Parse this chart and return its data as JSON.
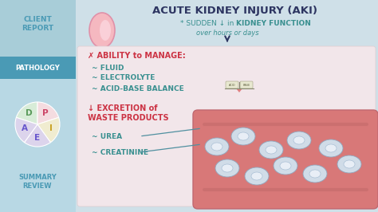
{
  "bg_color": "#cfe0e8",
  "sidebar_top_color": "#a8cdd8",
  "sidebar_mid_color": "#4a9ab5",
  "sidebar_bot_color": "#b8d8e4",
  "client_report_text": "CLIENT\nREPORT",
  "pathology_text": "PATHOLOGY",
  "summary_review_text": "SUMMARY\nREVIEW",
  "title": "ACUTE KIDNEY INJURY (AKI)",
  "subtitle1_plain": "* SUDDEN ↓ in ",
  "subtitle1_bold": "KIDNEY FUNCTION",
  "subtitle2": "over hours or days",
  "section1_header": "✗ ABILITY to MANAGE:",
  "section1_items": [
    "~ FLUID",
    "~ ELECTROLYTE",
    "~ ACID-BASE BALANCE"
  ],
  "section2_header_line1": "↓ EXCRETION of",
  "section2_header_line2": "WASTE PRODUCTS",
  "section2_items": [
    "~ UREA",
    "~ CREATININE"
  ],
  "title_color": "#2d3561",
  "red_color": "#cc3344",
  "teal_color": "#3a9090",
  "teal_bold_color": "#2a7070",
  "dark_navy": "#2d3561",
  "content_bg": "#f2e4e8",
  "vessel_color": "#d87878",
  "vessel_edge": "#c06060",
  "cell_outer": "#c8d8e8",
  "cell_inner": "#e8e8f4",
  "cell_nucleus": "#b0c4d8",
  "wedge_colors": [
    "#d8ecd8",
    "#f4dce0",
    "#dcd4ec",
    "#f0ecd0"
  ],
  "wedge_label_colors": [
    "#5a9a5a",
    "#cc4466",
    "#6655cc",
    "#c8a020"
  ],
  "wedge_labels": [
    "D",
    "P",
    "A",
    "E",
    "I"
  ],
  "sidebar_text_color": "#4a9ab5",
  "sidebar_text_color2": "#3a8aaa"
}
